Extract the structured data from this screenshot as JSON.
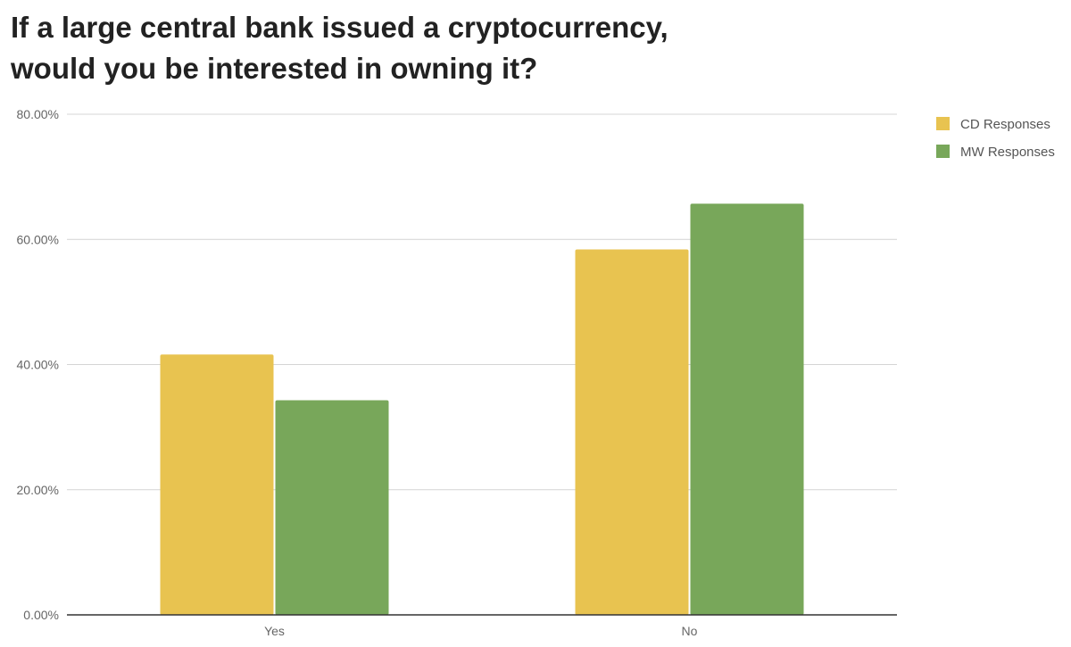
{
  "chart_data": {
    "type": "bar",
    "title_lines": [
      "If a large central bank issued a cryptocurrency,",
      "would you be interested in owning it?"
    ],
    "categories": [
      "Yes",
      "No"
    ],
    "series": [
      {
        "name": "CD Responses",
        "color": "#E8C350",
        "values": [
          41.6,
          58.4
        ]
      },
      {
        "name": "MW Responses",
        "color": "#78A75A",
        "values": [
          34.3,
          65.7
        ]
      }
    ],
    "y_ticks": [
      "0.00%",
      "20.00%",
      "40.00%",
      "60.00%",
      "80.00%"
    ],
    "ylim": [
      0,
      80
    ],
    "grid": true,
    "legend_position": "top-right"
  }
}
